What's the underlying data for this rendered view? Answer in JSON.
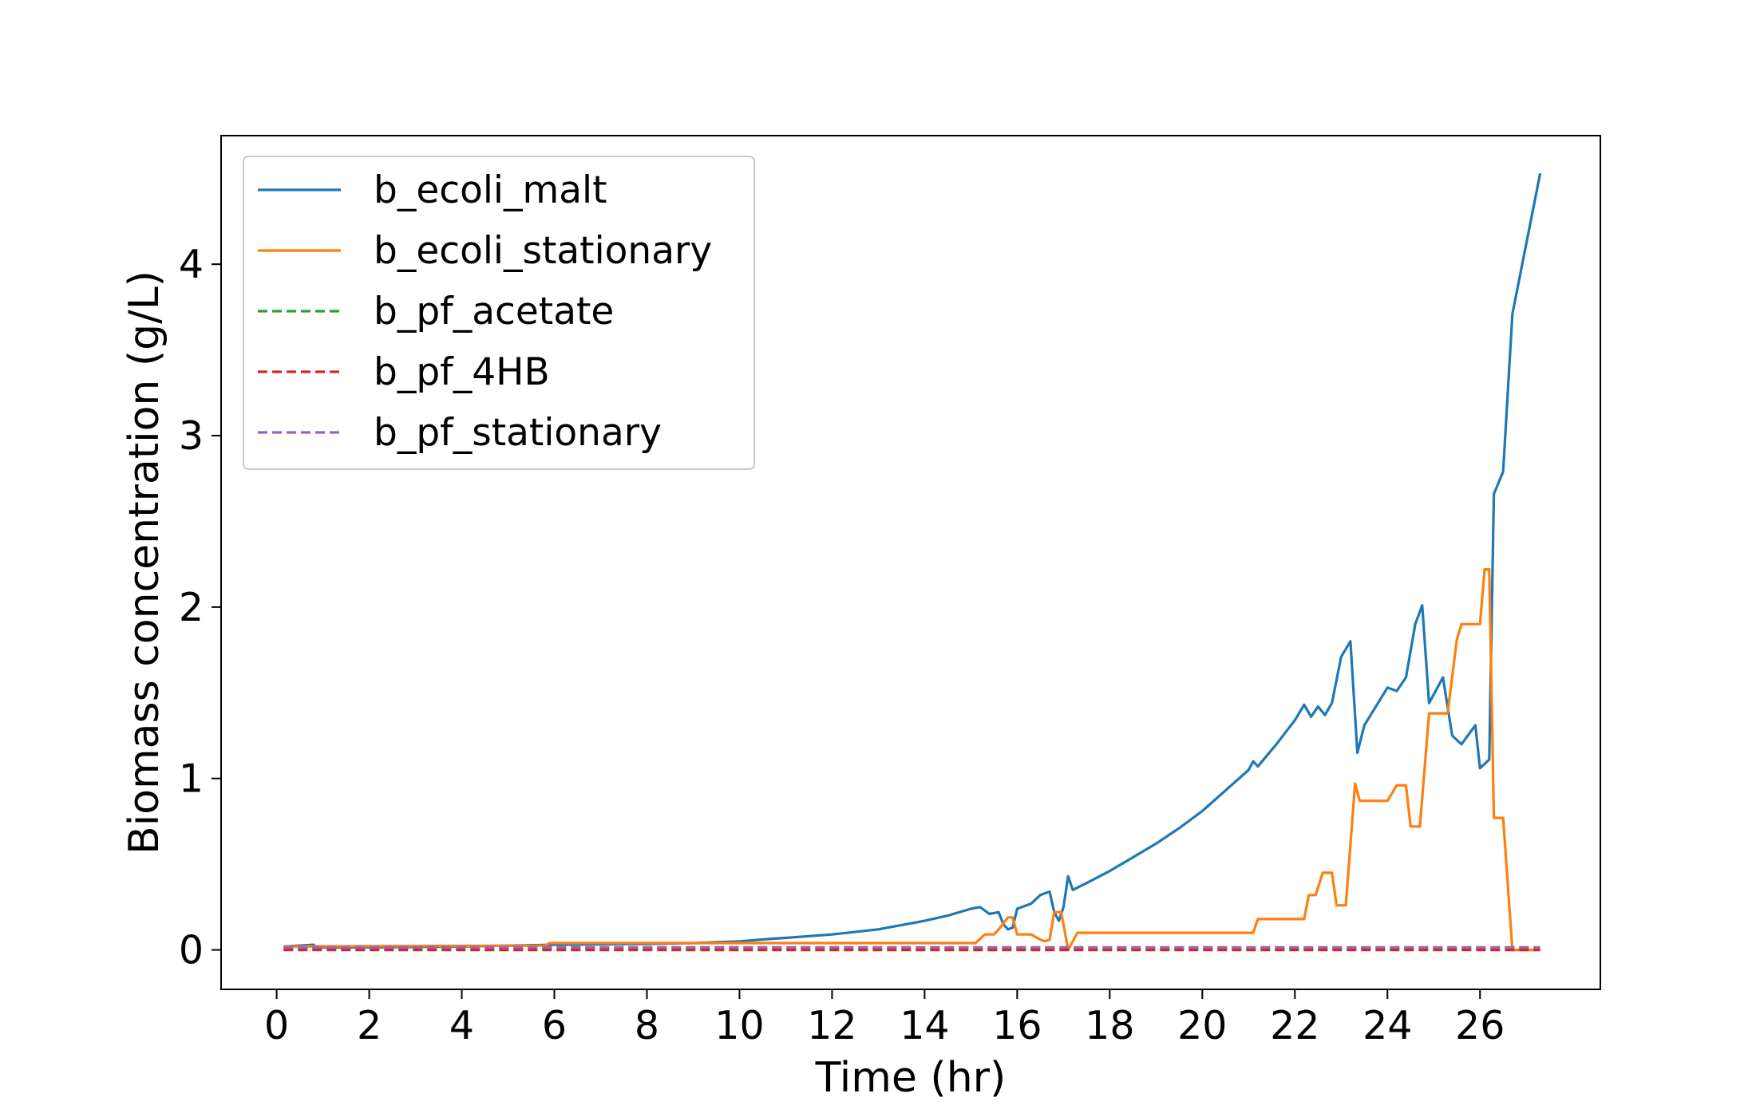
{
  "chart_data": {
    "type": "line",
    "xlabel": "Time (hr)",
    "ylabel": "Biomass concentration (g/L)",
    "xlim": [
      -1.2,
      28.6
    ],
    "ylim": [
      -0.23,
      4.75
    ],
    "xticks": [
      0,
      2,
      4,
      6,
      8,
      10,
      12,
      14,
      16,
      18,
      20,
      22,
      24,
      26
    ],
    "yticks": [
      0,
      1,
      2,
      3,
      4
    ],
    "grid": false,
    "legend_position": "upper-left",
    "series": [
      {
        "name": "b_ecoli_malt",
        "color": "#1f77b4",
        "dash": "solid",
        "x": [
          0.15,
          0.8,
          0.85,
          2,
          4,
          6,
          8,
          9,
          10,
          10.7,
          11,
          12,
          13,
          14,
          14.5,
          15,
          15.2,
          15.4,
          15.6,
          15.7,
          15.8,
          15.9,
          16.0,
          16.3,
          16.5,
          16.7,
          16.8,
          16.9,
          17.0,
          17.1,
          17.2,
          17.5,
          18,
          18.5,
          19,
          19.5,
          20,
          20.5,
          21.0,
          21.1,
          21.2,
          21.6,
          22.0,
          22.2,
          22.35,
          22.5,
          22.65,
          22.8,
          23.0,
          23.2,
          23.35,
          23.5,
          24.0,
          24.2,
          24.4,
          24.6,
          24.75,
          24.9,
          25.2,
          25.4,
          25.6,
          25.9,
          26.0,
          26.2,
          26.3,
          26.5,
          26.7,
          27.3
        ],
        "y": [
          0.02,
          0.03,
          0.015,
          0.015,
          0.02,
          0.03,
          0.035,
          0.04,
          0.05,
          0.065,
          0.07,
          0.09,
          0.12,
          0.17,
          0.2,
          0.24,
          0.25,
          0.21,
          0.22,
          0.15,
          0.12,
          0.13,
          0.24,
          0.27,
          0.32,
          0.34,
          0.22,
          0.17,
          0.25,
          0.43,
          0.35,
          0.39,
          0.46,
          0.54,
          0.62,
          0.71,
          0.81,
          0.93,
          1.05,
          1.1,
          1.07,
          1.2,
          1.34,
          1.43,
          1.36,
          1.42,
          1.37,
          1.44,
          1.71,
          1.8,
          1.15,
          1.31,
          1.53,
          1.51,
          1.59,
          1.9,
          2.01,
          1.44,
          1.59,
          1.25,
          1.2,
          1.31,
          1.06,
          1.11,
          2.66,
          2.79,
          3.71,
          4.53
        ]
      },
      {
        "name": "b_ecoli_stationary",
        "color": "#ff7f0e",
        "dash": "solid",
        "x": [
          0.15,
          5.8,
          5.9,
          15.1,
          15.3,
          15.5,
          15.6,
          15.8,
          15.9,
          16.0,
          16.3,
          16.5,
          16.6,
          16.7,
          16.8,
          16.95,
          17.1,
          17.3,
          21.1,
          21.2,
          21.8,
          22.2,
          22.3,
          22.45,
          22.6,
          22.8,
          22.9,
          23.1,
          23.3,
          23.4,
          23.6,
          24.0,
          24.2,
          24.4,
          24.5,
          24.7,
          24.9,
          25.3,
          25.5,
          25.6,
          25.7,
          25.8,
          26.0,
          26.1,
          26.2,
          26.3,
          26.5,
          26.7,
          27.3
        ],
        "y": [
          0.02,
          0.025,
          0.04,
          0.04,
          0.09,
          0.09,
          0.12,
          0.19,
          0.19,
          0.09,
          0.09,
          0.06,
          0.05,
          0.06,
          0.22,
          0.22,
          0.0,
          0.1,
          0.1,
          0.18,
          0.18,
          0.18,
          0.32,
          0.32,
          0.45,
          0.45,
          0.26,
          0.26,
          0.97,
          0.87,
          0.87,
          0.87,
          0.96,
          0.96,
          0.72,
          0.72,
          1.38,
          1.38,
          1.81,
          1.9,
          1.9,
          1.9,
          1.9,
          2.22,
          2.22,
          0.77,
          0.77,
          0.0,
          0.0
        ]
      },
      {
        "name": "b_pf_acetate",
        "color": "#2ca02c",
        "dash": "dashed",
        "x": [
          0.15,
          27.3
        ],
        "y": [
          0.01,
          0.01
        ]
      },
      {
        "name": "b_pf_4HB",
        "color": "#d62728",
        "dash": "dashed",
        "x": [
          0.15,
          27.3
        ],
        "y": [
          0.0,
          0.0
        ]
      },
      {
        "name": "b_pf_stationary",
        "color": "#9467bd",
        "dash": "dashed",
        "x": [
          0.15,
          27.3
        ],
        "y": [
          0.015,
          0.015
        ]
      }
    ]
  }
}
